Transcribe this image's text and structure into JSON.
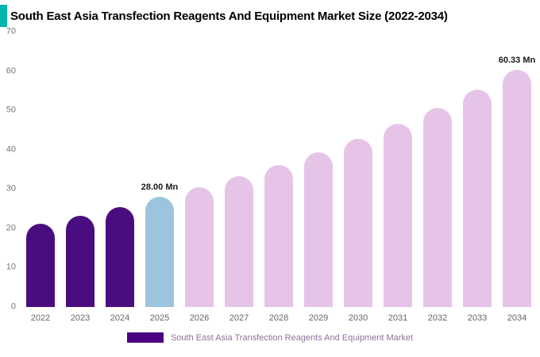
{
  "header": {
    "title": "South East Asia Transfection Reagents And Equipment Market Size (2022-2034)",
    "accent_color": "#00B5AD"
  },
  "chart_data": {
    "type": "bar",
    "title": "South East Asia Transfection Reagents And Equipment Market Size (2022-2034)",
    "categories": [
      "2022",
      "2023",
      "2024",
      "2025",
      "2026",
      "2027",
      "2028",
      "2029",
      "2030",
      "2031",
      "2032",
      "2033",
      "2034"
    ],
    "values": [
      21.1,
      23.3,
      25.4,
      28.0,
      30.5,
      33.2,
      36.1,
      39.3,
      42.8,
      46.6,
      50.7,
      55.2,
      60.33
    ],
    "bar_colors": [
      "#4A0D7F",
      "#4A0D7F",
      "#4A0D7F",
      "#9CC4DE",
      "#E6C4E8",
      "#E6C4E8",
      "#E6C4E8",
      "#E6C4E8",
      "#E6C4E8",
      "#E6C4E8",
      "#E6C4E8",
      "#E6C4E8",
      "#E6C4E8"
    ],
    "point_labels": [
      "",
      "",
      "",
      "28.00 Mn",
      "",
      "",
      "",
      "",
      "",
      "",
      "",
      "",
      "60.33 Mn"
    ],
    "ylim": [
      0,
      70
    ],
    "ytick_step": 10,
    "yticks": [
      "0",
      "10",
      "20",
      "30",
      "40",
      "50",
      "60",
      "70"
    ],
    "grid": false,
    "unit": "Mn",
    "legend": {
      "label": "South East Asia Transfection Reagents And Equipment Market",
      "color": "#4B0082",
      "position": "bottom"
    }
  }
}
